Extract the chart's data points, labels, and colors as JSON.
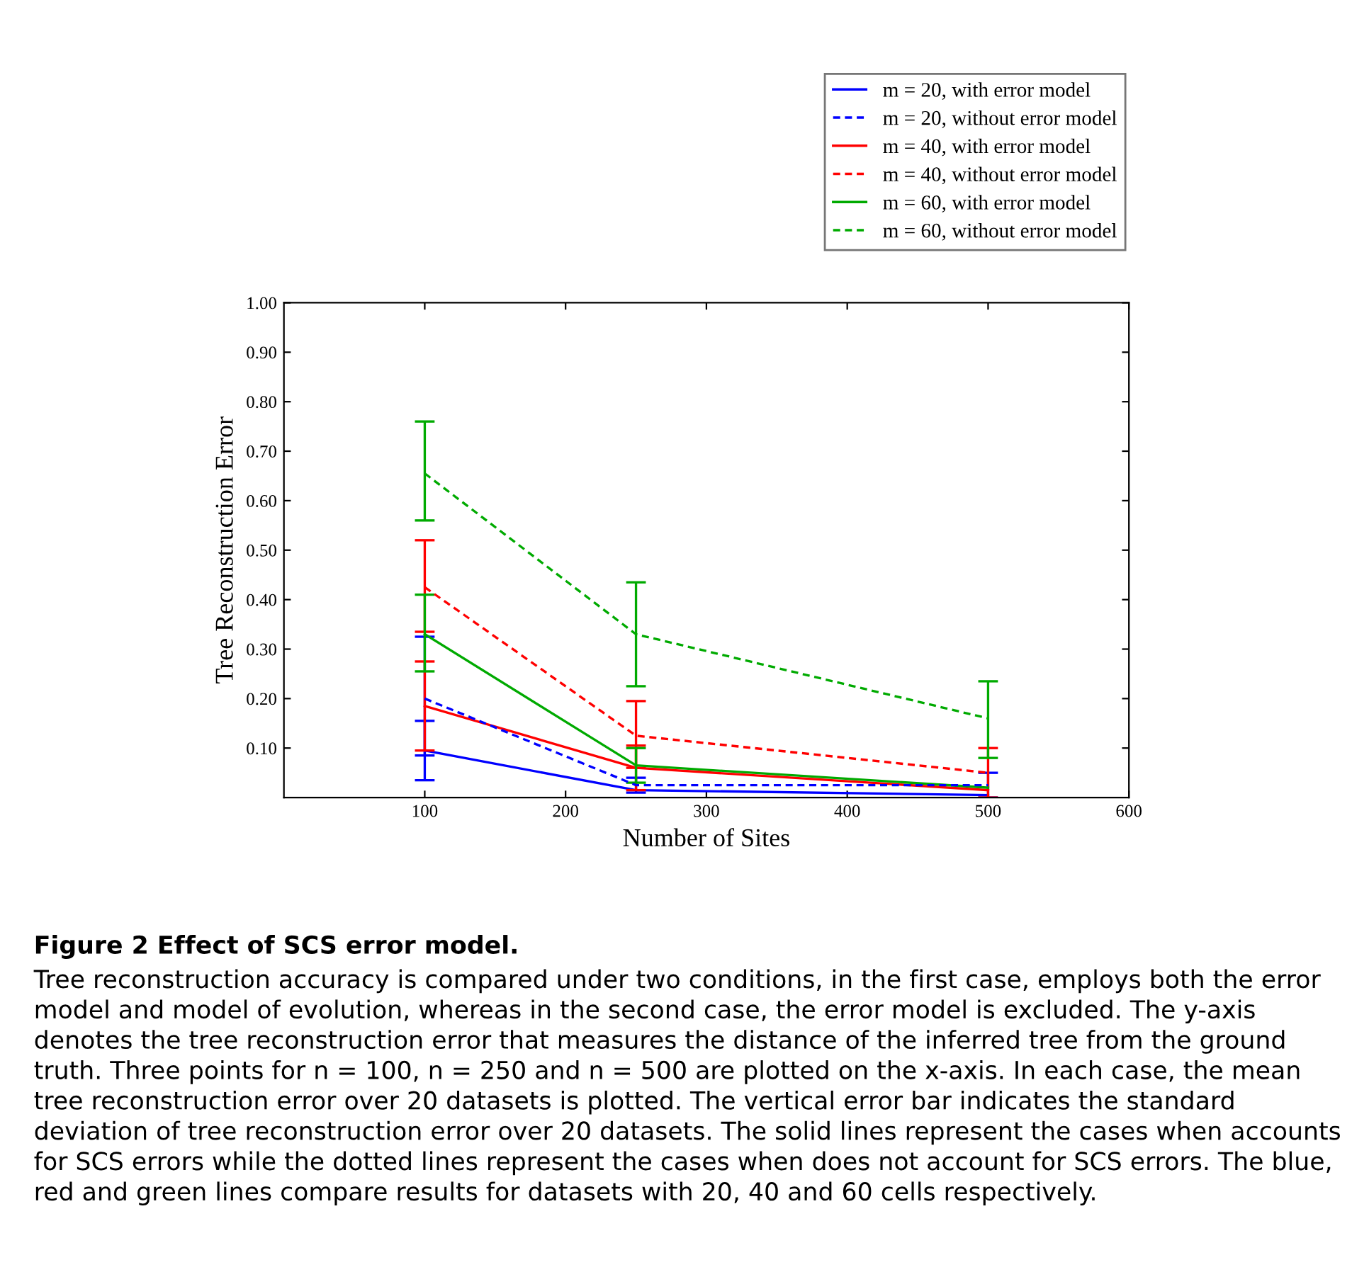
{
  "chart_data": {
    "type": "line",
    "title": "Figure 2 Effect of SCS error model.",
    "xlabel": "Number of Sites",
    "ylabel": "Tree Reconstruction Error",
    "x": [
      100,
      250,
      500
    ],
    "xlim": [
      0,
      600
    ],
    "xticks": [
      100,
      200,
      300,
      400,
      500,
      600
    ],
    "ylim": [
      0,
      1
    ],
    "yticks": [
      {
        "value": 0.1,
        "label": "0.10"
      },
      {
        "value": 0.2,
        "label": "0.20"
      },
      {
        "value": 0.3,
        "label": "0.30"
      },
      {
        "value": 0.4,
        "label": "0.40"
      },
      {
        "value": 0.5,
        "label": "0.50"
      },
      {
        "value": 0.6,
        "label": "0.60"
      },
      {
        "value": 0.7,
        "label": "0.70"
      },
      {
        "value": 0.8,
        "label": "0.80"
      },
      {
        "value": 0.9,
        "label": "0.90"
      },
      {
        "value": 1.0,
        "label": "1.00"
      }
    ],
    "grid": false,
    "legend": "top right",
    "marker": "none",
    "series": [
      {
        "name": "m = 20, with error model",
        "color": "#0000ff",
        "line_style": "solid",
        "values": [
          0.095,
          0.015,
          0.005
        ],
        "errors": [
          [
            0.035,
            0.155
          ],
          null,
          null
        ]
      },
      {
        "name": "m = 20, without error model",
        "color": "#0000ff",
        "line_style": "dashed",
        "values": [
          0.2,
          0.025,
          0.025
        ],
        "errors": [
          [
            0.085,
            0.325
          ],
          [
            0.01,
            0.04
          ],
          [
            0.0,
            0.05
          ]
        ]
      },
      {
        "name": "m = 40, with error model",
        "color": "#ff0000",
        "line_style": "solid",
        "values": [
          0.185,
          0.06,
          0.015
        ],
        "errors": [
          [
            0.095,
            0.275
          ],
          [
            0.015,
            0.105
          ],
          null
        ]
      },
      {
        "name": "m = 40, without error model",
        "color": "#ff0000",
        "line_style": "dashed",
        "values": [
          0.425,
          0.125,
          0.05
        ],
        "errors": [
          [
            0.335,
            0.52
          ],
          [
            0.06,
            0.195
          ],
          [
            0.0,
            0.1
          ]
        ]
      },
      {
        "name": "m = 60, with error model",
        "color": "#00aa00",
        "line_style": "solid",
        "values": [
          0.33,
          0.065,
          0.02
        ],
        "errors": [
          [
            0.255,
            0.41
          ],
          [
            0.03,
            0.1
          ],
          null
        ]
      },
      {
        "name": "m = 60, without error model",
        "color": "#00aa00",
        "line_style": "dashed",
        "values": [
          0.655,
          0.33,
          0.16
        ],
        "errors": [
          [
            0.56,
            0.76
          ],
          [
            0.225,
            0.435
          ],
          [
            0.08,
            0.235
          ]
        ]
      }
    ],
    "annotations": [
      "Tree reconstruction accuracy is compared under two conditions, in the first case, employs both the error model and model of evolution, whereas in the second case, the error model is excluded. The y-axis denotes the tree reconstruction error that measures the distance of the inferred tree from the ground truth. Three points for n = 100, n = 250 and n = 500 are plotted on the x-axis. In each case, the mean tree reconstruction error over 20 datasets is plotted. The vertical error bar indicates the standard deviation of tree reconstruction error over 20 datasets. The solid lines represent the cases when accounts for SCS errors while the dotted lines represent the cases when does not account for SCS errors. The blue, red and green lines compare results for datasets with 20, 40 and 60 cells respectively."
    ]
  }
}
